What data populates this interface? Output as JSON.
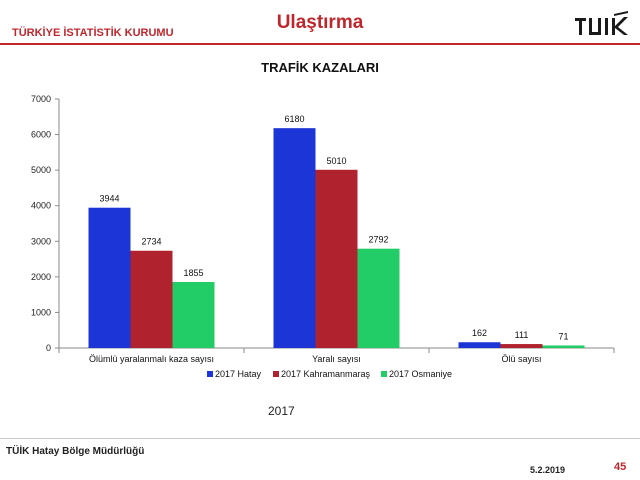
{
  "header": {
    "org_name": "TÜRKİYE İSTATİSTİK KURUMU",
    "title": "Ulaştırma",
    "logo_text": "TÜİK",
    "logo_color": "#1a1a1a",
    "accent_color": "#c0272d"
  },
  "chart_data": {
    "type": "bar",
    "title": "TRAFİK KAZALARI",
    "categories": [
      "Ölümlü yaralanmalı kaza sayısı",
      "Yaralı sayısı",
      "Ölü sayısı"
    ],
    "series": [
      {
        "name": "2017 Hatay",
        "color": "#1c35d6",
        "values": [
          3944,
          6180,
          162
        ]
      },
      {
        "name": "2017 Kahramanmaraş",
        "color": "#b0232e",
        "values": [
          2734,
          5010,
          111
        ]
      },
      {
        "name": "2017 Osmaniye",
        "color": "#22cc66",
        "values": [
          1855,
          2792,
          71
        ]
      }
    ],
    "ylim": [
      0,
      7000
    ],
    "yticks": [
      0,
      1000,
      2000,
      3000,
      4000,
      5000,
      6000,
      7000
    ],
    "legend_position": "bottom",
    "grid": false,
    "xlabel": "",
    "ylabel": ""
  },
  "year_label": "2017",
  "footer": {
    "org": "TÜİK Hatay Bölge Müdürlüğü",
    "date": "5.2.2019",
    "page": "45"
  }
}
